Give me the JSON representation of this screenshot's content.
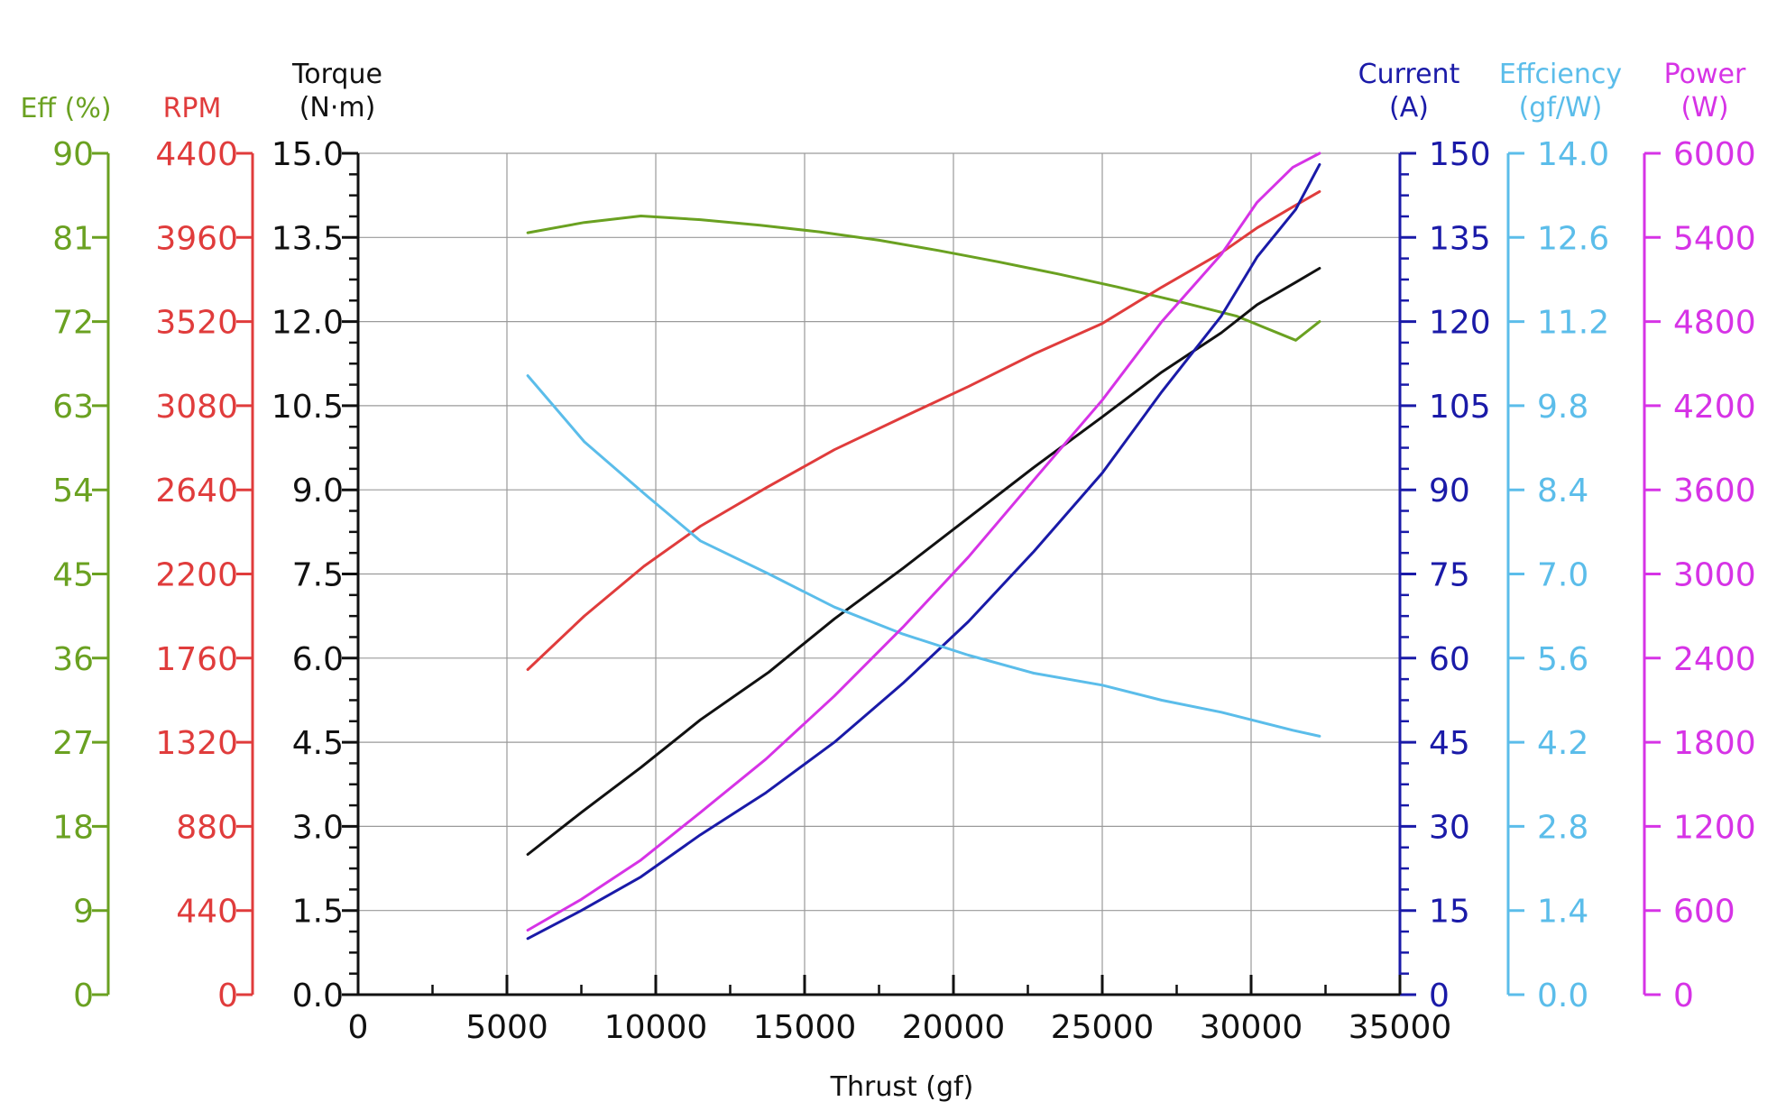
{
  "chart_data": {
    "type": "line",
    "xlabel": "Thrust (gf)",
    "xlim": [
      0,
      35000
    ],
    "x_ticks": [
      "0",
      "5000",
      "10000",
      "15000",
      "20000",
      "25000",
      "30000",
      "35000"
    ],
    "grid": true,
    "axes": [
      {
        "id": "eff",
        "title_lines": [
          "Eff (%)"
        ],
        "color": "#6aa121",
        "ylim": [
          0,
          90
        ],
        "side": "left",
        "ticks": [
          "0",
          "9",
          "18",
          "27",
          "36",
          "45",
          "54",
          "63",
          "72",
          "81",
          "90"
        ]
      },
      {
        "id": "rpm",
        "title_lines": [
          "RPM"
        ],
        "color": "#e03c3c",
        "ylim": [
          0,
          4400
        ],
        "side": "left",
        "ticks": [
          "0",
          "440",
          "880",
          "1320",
          "1760",
          "2200",
          "2640",
          "3080",
          "3520",
          "3960",
          "4400"
        ]
      },
      {
        "id": "torque",
        "title_lines": [
          "Torque",
          "(N·m)"
        ],
        "color": "#111111",
        "ylim": [
          0,
          15
        ],
        "side": "left",
        "ticks": [
          "0.0",
          "1.5",
          "3.0",
          "4.5",
          "6.0",
          "7.5",
          "9.0",
          "10.5",
          "12.0",
          "13.5",
          "15.0"
        ]
      },
      {
        "id": "current",
        "title_lines": [
          "Current",
          "(A)"
        ],
        "color": "#1a1aa8",
        "ylim": [
          0,
          150
        ],
        "side": "right",
        "ticks": [
          "0",
          "15",
          "30",
          "45",
          "60",
          "75",
          "90",
          "105",
          "120",
          "135",
          "150"
        ]
      },
      {
        "id": "efficiency",
        "title_lines": [
          "Effciency",
          "(gf/W)"
        ],
        "color": "#5bbdea",
        "ylim": [
          0,
          14
        ],
        "side": "right",
        "ticks": [
          "0.0",
          "1.4",
          "2.8",
          "4.2",
          "5.6",
          "7.0",
          "8.4",
          "9.8",
          "11.2",
          "12.6",
          "14.0"
        ]
      },
      {
        "id": "power",
        "title_lines": [
          "Power",
          "(W)"
        ],
        "color": "#d633e6",
        "ylim": [
          0,
          6000
        ],
        "side": "right",
        "ticks": [
          "0",
          "600",
          "1200",
          "1800",
          "2400",
          "3000",
          "3600",
          "4200",
          "4800",
          "5400",
          "6000"
        ]
      }
    ],
    "series": [
      {
        "axis": "eff",
        "color": "#6aa121",
        "x": [
          5700,
          7600,
          9500,
          11500,
          13500,
          15500,
          17500,
          19500,
          21500,
          23500,
          25500,
          27500,
          29500,
          31500,
          32300
        ],
        "y": [
          81.5,
          82.6,
          83.3,
          82.9,
          82.3,
          81.6,
          80.7,
          79.6,
          78.4,
          77.1,
          75.7,
          74.2,
          72.6,
          70.0,
          72.0
        ]
      },
      {
        "axis": "rpm",
        "color": "#e03c3c",
        "x": [
          5700,
          7600,
          9600,
          11500,
          13700,
          16000,
          18300,
          20500,
          22700,
          25000,
          27000,
          29000,
          30200,
          31400,
          32300
        ],
        "y": [
          1700,
          1980,
          2240,
          2450,
          2650,
          2850,
          3020,
          3180,
          3350,
          3510,
          3700,
          3880,
          4010,
          4120,
          4200
        ]
      },
      {
        "axis": "torque",
        "color": "#111111",
        "x": [
          5700,
          7500,
          9500,
          11500,
          13800,
          16000,
          18300,
          20500,
          22700,
          25000,
          27000,
          29000,
          30200,
          31500,
          32300
        ],
        "y": [
          2.5,
          3.25,
          4.05,
          4.9,
          5.75,
          6.7,
          7.6,
          8.5,
          9.4,
          10.3,
          11.1,
          11.8,
          12.3,
          12.7,
          12.95
        ]
      },
      {
        "axis": "current",
        "color": "#1a1aa8",
        "x": [
          5700,
          7500,
          9500,
          11500,
          13700,
          16000,
          18300,
          20500,
          22700,
          25000,
          27000,
          29000,
          30200,
          31500,
          32300
        ],
        "y": [
          10,
          15,
          21,
          28.5,
          36,
          45,
          55.5,
          66.5,
          79,
          93,
          107.5,
          121,
          131.5,
          140,
          148
        ]
      },
      {
        "axis": "efficiency",
        "color": "#5bbdea",
        "x": [
          5700,
          7600,
          9700,
          11500,
          13800,
          16000,
          18300,
          20500,
          22700,
          25000,
          27000,
          29000,
          30200,
          31400,
          32300
        ],
        "y": [
          10.3,
          9.2,
          8.3,
          7.55,
          7.0,
          6.45,
          6.0,
          5.65,
          5.35,
          5.15,
          4.9,
          4.7,
          4.55,
          4.4,
          4.3
        ]
      },
      {
        "axis": "power",
        "color": "#d633e6",
        "x": [
          5700,
          7500,
          9500,
          11500,
          13700,
          16000,
          18300,
          20500,
          22700,
          25000,
          27000,
          29000,
          30200,
          31400,
          32300
        ],
        "y": [
          460,
          680,
          960,
          1300,
          1680,
          2130,
          2620,
          3120,
          3670,
          4240,
          4800,
          5280,
          5650,
          5900,
          6000
        ]
      }
    ]
  }
}
